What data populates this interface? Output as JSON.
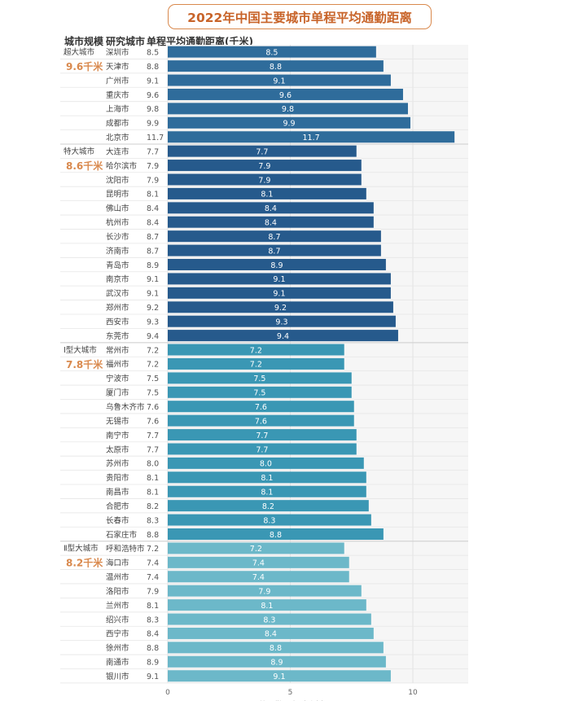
{
  "chart_data": {
    "type": "bar",
    "orientation": "horizontal",
    "title": "2022年中国主要城市单程平均通勤距离",
    "header": {
      "col_group": "城市规模",
      "col_city": "研究城市",
      "col_value": "单程平均通勤距离(千米)"
    },
    "xlabel": "平均通勤距离（千米）",
    "xlim": [
      0,
      12.4
    ],
    "xticks": [
      0,
      5,
      10
    ],
    "groups": [
      {
        "name": "超大城市",
        "avg": "9.6千米",
        "color": "#2f6c9b",
        "cities": [
          "深圳市",
          "天津市",
          "广州市",
          "重庆市",
          "上海市",
          "成都市",
          "北京市"
        ],
        "values": [
          8.5,
          8.8,
          9.1,
          9.6,
          9.8,
          9.9,
          11.7
        ]
      },
      {
        "name": "特大城市",
        "avg": "8.6千米",
        "color": "#265a8c",
        "cities": [
          "大连市",
          "哈尔滨市",
          "沈阳市",
          "昆明市",
          "佛山市",
          "杭州市",
          "长沙市",
          "济南市",
          "青岛市",
          "南京市",
          "武汉市",
          "郑州市",
          "西安市",
          "东莞市"
        ],
        "values": [
          7.7,
          7.9,
          7.9,
          8.1,
          8.4,
          8.4,
          8.7,
          8.7,
          8.9,
          9.1,
          9.1,
          9.2,
          9.3,
          9.4
        ]
      },
      {
        "name": "Ⅰ型大城市",
        "avg": "7.8千米",
        "color": "#3a97b4",
        "cities": [
          "常州市",
          "福州市",
          "宁波市",
          "厦门市",
          "乌鲁木齐市",
          "无锡市",
          "南宁市",
          "太原市",
          "苏州市",
          "贵阳市",
          "南昌市",
          "合肥市",
          "长春市",
          "石家庄市"
        ],
        "values": [
          7.2,
          7.2,
          7.5,
          7.5,
          7.6,
          7.6,
          7.7,
          7.7,
          8.0,
          8.1,
          8.1,
          8.2,
          8.3,
          8.8
        ]
      },
      {
        "name": "Ⅱ型大城市",
        "avg": "8.2千米",
        "color": "#6cb8c9",
        "cities": [
          "呼和浩特市",
          "海口市",
          "温州市",
          "洛阳市",
          "兰州市",
          "绍兴市",
          "西宁市",
          "徐州市",
          "南通市",
          "银川市"
        ],
        "values": [
          7.2,
          7.4,
          7.4,
          7.9,
          8.1,
          8.3,
          8.4,
          8.8,
          8.9,
          9.1
        ]
      }
    ]
  }
}
